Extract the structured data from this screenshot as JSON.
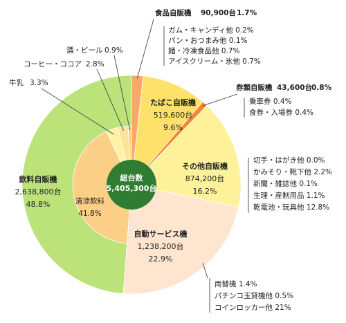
{
  "chart_data": {
    "type": "pie",
    "center": {
      "title": "総台数",
      "total": "5,405,300台"
    },
    "outer_ring": [
      {
        "key": "food",
        "title": "食品自販機",
        "units": "90,900台",
        "pct": "1.7%",
        "value": 1.7,
        "color": "#f8a86a",
        "subitems": [
          "ガム・キャンディ他 0.2%",
          "パン・おつまみ他 0.1%",
          "麺・冷凍食品他 0.7%",
          "アイスクリーム・氷他 0.7%"
        ]
      },
      {
        "key": "tobacco",
        "title": "たばこ自販機",
        "units": "519,600台",
        "pct": "9.6%",
        "value": 9.6,
        "color": "#fde16a",
        "subitems": []
      },
      {
        "key": "ticket",
        "title": "券類自販機",
        "units": "43,600台",
        "pct": "0.8%",
        "value": 0.8,
        "color": "#f6852d",
        "subitems": [
          "乗車券 0.4%",
          "食券・入場券 0.4%"
        ]
      },
      {
        "key": "other",
        "title": "その他自販機",
        "units": "874,200台",
        "pct": "16.2%",
        "value": 16.2,
        "color": "#fdf29a",
        "subitems": [
          "切手・はがき他 0.0%",
          "かみそり・靴下他 2.2%",
          "新聞・雑誌他 0.1%",
          "生理・産制用品 1.1%",
          "乾電池・玩具他 12.8%"
        ]
      },
      {
        "key": "service",
        "title": "自動サービス機",
        "units": "1,238,200台",
        "pct": "22.9%",
        "value": 22.9,
        "color": "#fde5cf",
        "subitems": [
          "両替機 1.4%",
          "パチンコ玉貸機他 0.5%",
          "コインロッカー他 21%"
        ]
      },
      {
        "key": "drink",
        "title": "飲料自販機",
        "units": "2,638,800台",
        "pct": "48.8%",
        "value": 48.8,
        "color": "#bce27a",
        "subitems": []
      }
    ],
    "inner_ring": [
      {
        "key": "soft",
        "title": "清涼飲料",
        "pct": "41.8%",
        "value": 41.8,
        "color": "#fccf86"
      },
      {
        "key": "milk",
        "title": "牛乳",
        "pct": "3.3%",
        "value": 3.3,
        "color": "#fff3a3"
      },
      {
        "key": "coffee",
        "title": "コーヒー・ココア",
        "pct": "2.8%",
        "value": 2.8,
        "color": "#fde49c"
      },
      {
        "key": "beer",
        "title": "酒・ビール",
        "pct": "0.9%",
        "value": 0.9,
        "color": "#fcd27a"
      }
    ],
    "center_color": "#2f7d32"
  }
}
